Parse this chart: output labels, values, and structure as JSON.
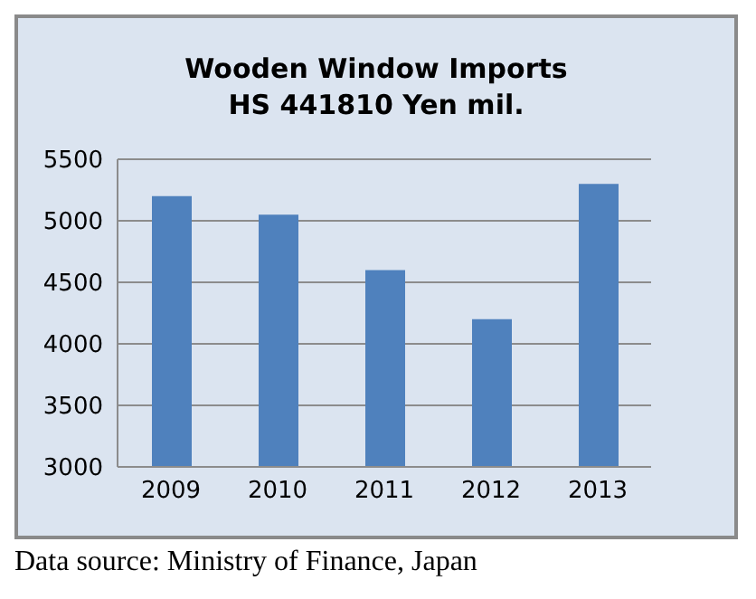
{
  "chart_data": {
    "type": "bar",
    "title": "Wooden Window Imports\nHS 441810 Yen mil.",
    "categories": [
      "2009",
      "2010",
      "2011",
      "2012",
      "2013"
    ],
    "values": [
      5200,
      5050,
      4600,
      4200,
      5300
    ],
    "color": "#4f81bd",
    "ylim": [
      3000,
      5500
    ],
    "yticks": [
      3000,
      3500,
      4000,
      4500,
      5000,
      5500
    ],
    "grid": "y",
    "annotations": [
      "Data source: Ministry of Finance, Japan"
    ]
  }
}
